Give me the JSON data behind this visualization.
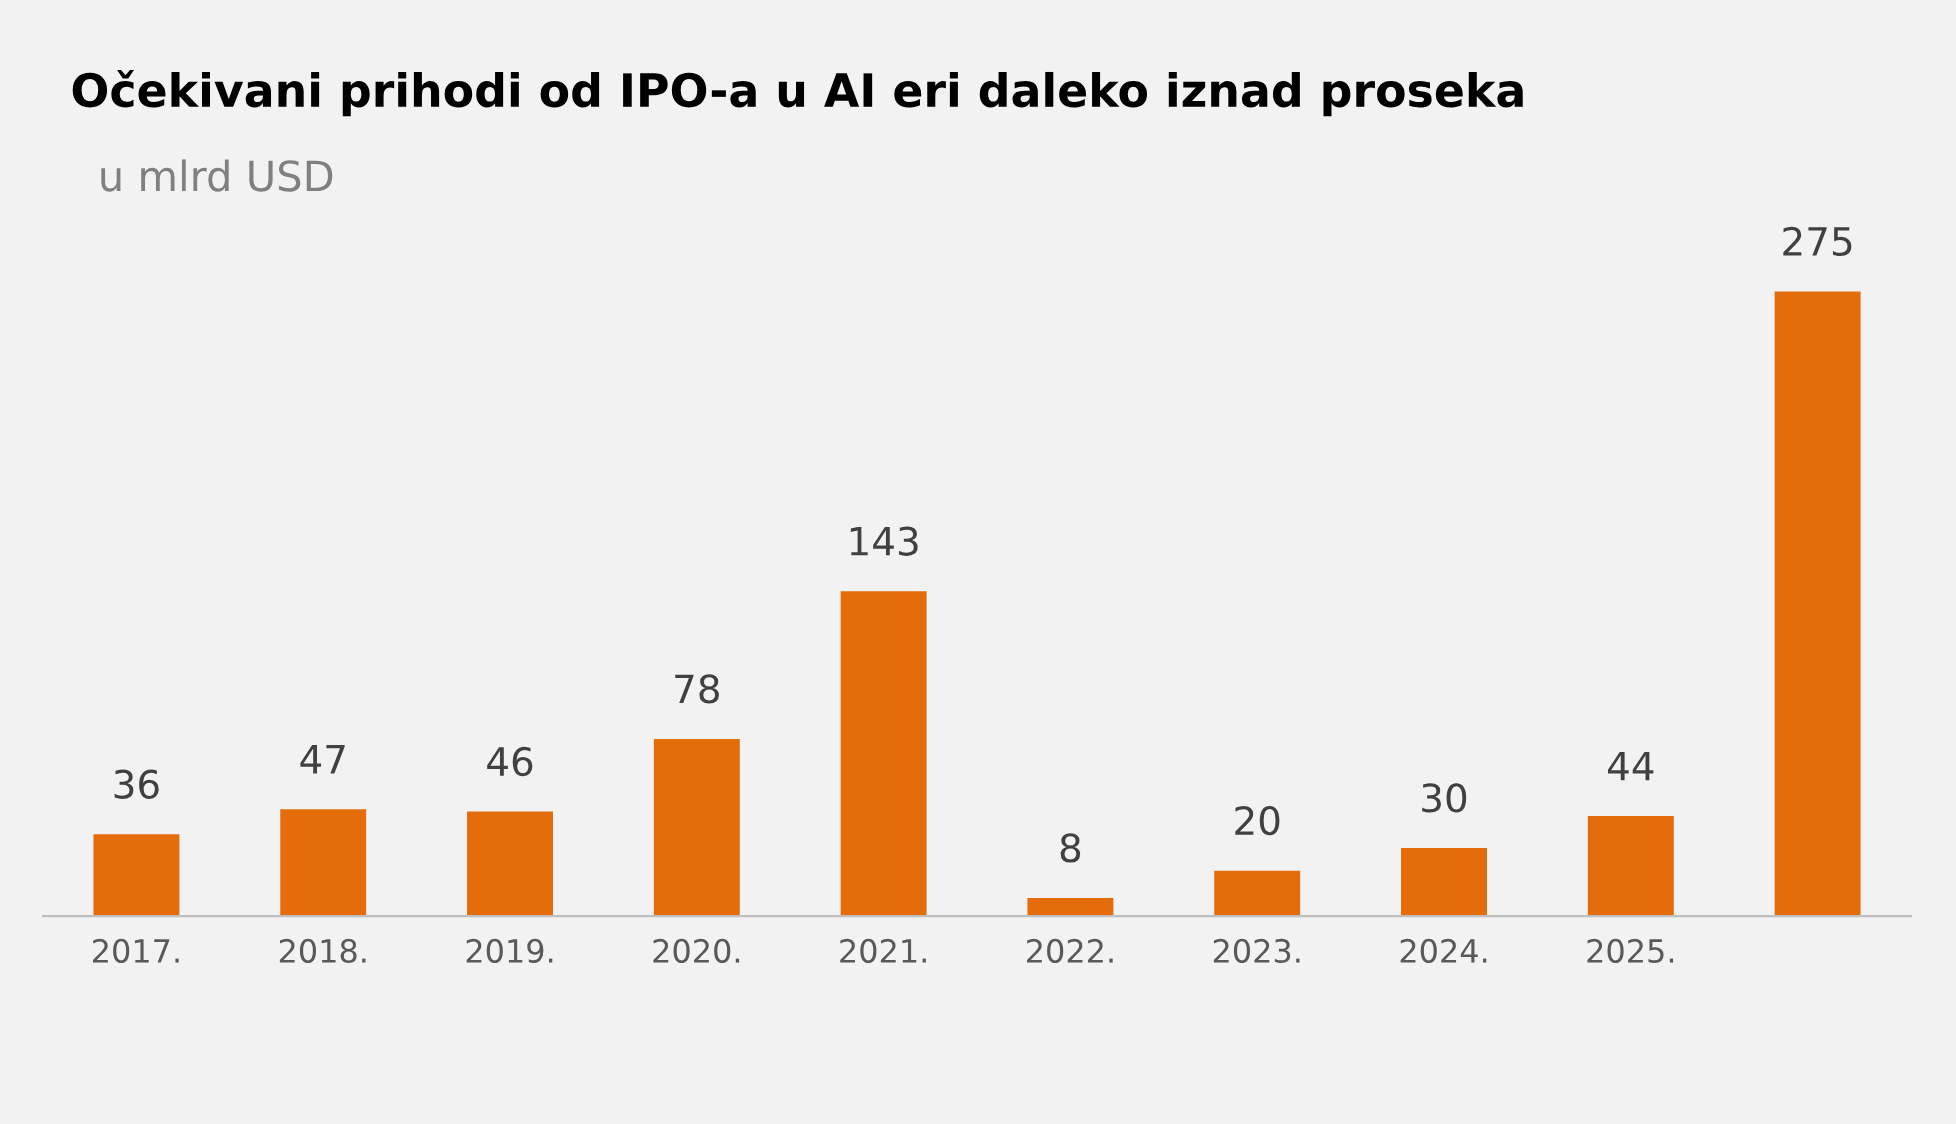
{
  "chart_data": {
    "type": "bar",
    "title": "Očekivani prihodi od IPO-a u AI eri daleko iznad proseka",
    "subtitle": "u mlrd USD",
    "categories": [
      "2017.",
      "2018.",
      "2019.",
      "2020.",
      "2021.",
      "2022.",
      "2023.",
      "2024.",
      "2025.",
      null
    ],
    "values": [
      36,
      47,
      46,
      78,
      143,
      8,
      20,
      30,
      44,
      275
    ],
    "color": "#e46c0a",
    "data_labels": true,
    "grid": false,
    "legend": false,
    "tick_labels": "x"
  }
}
